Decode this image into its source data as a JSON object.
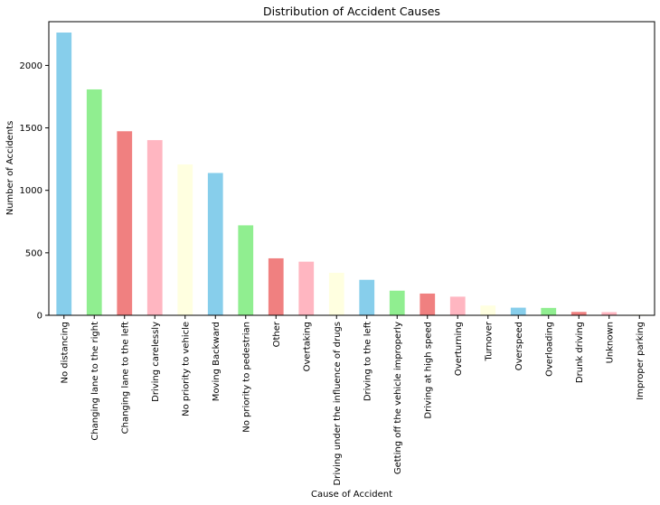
{
  "chart_data": {
    "type": "bar",
    "title": "Distribution of Accident Causes",
    "xlabel": "Cause of Accident",
    "ylabel": "Number of Accidents",
    "ylim": [
      0,
      2350
    ],
    "yticks": [
      0,
      500,
      1000,
      1500,
      2000
    ],
    "grid": false,
    "categories": [
      "No distancing",
      "Changing lane to the right",
      "Changing lane to the left",
      "Driving carelessly",
      "No priority to vehicle",
      "Moving Backward",
      "No priority to pedestrian",
      "Other",
      "Overtaking",
      "Driving under the influence of drugs",
      "Driving to the left",
      "Getting off the vehicle improperly",
      "Driving at high speed",
      "Overturning",
      "Turnover",
      "Overspeed",
      "Overloading",
      "Drunk driving",
      "Unknown",
      "Improper parking"
    ],
    "values": [
      2263,
      1808,
      1473,
      1402,
      1207,
      1139,
      720,
      456,
      429,
      340,
      284,
      197,
      174,
      149,
      78,
      61,
      59,
      27,
      25,
      5
    ],
    "colors": [
      "#87ceeb",
      "#90ee90",
      "#f08080",
      "#ffb6c1",
      "#ffffe0"
    ]
  }
}
